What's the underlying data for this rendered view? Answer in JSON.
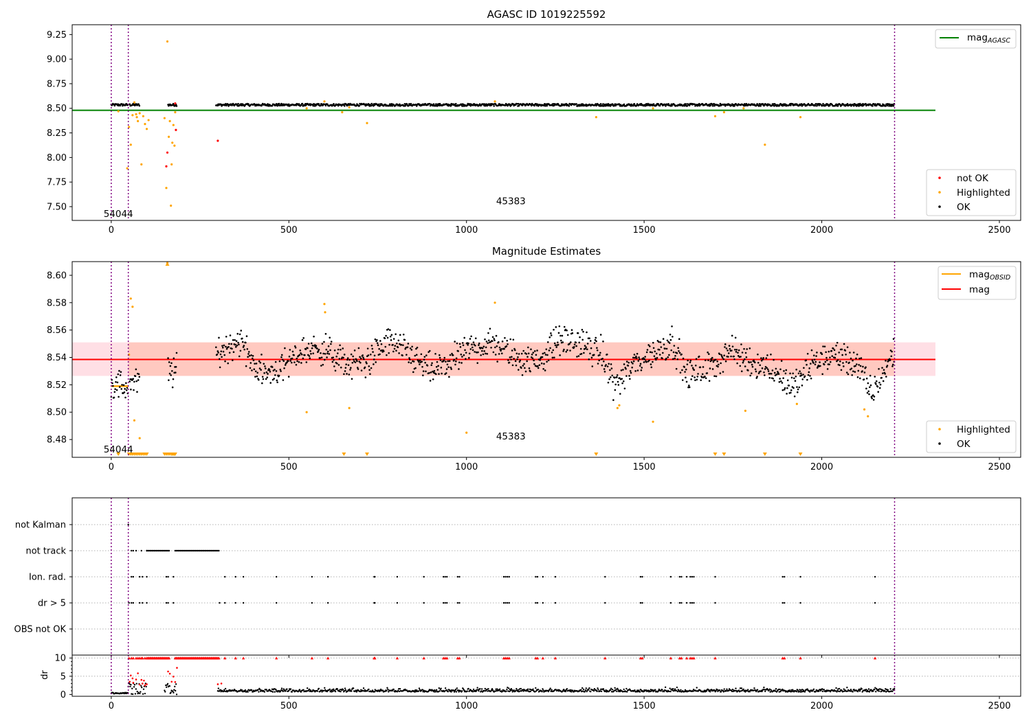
{
  "chart_data": [
    {
      "type": "scatter",
      "title": "AGASC ID 1019225592",
      "xlim": [
        -110,
        2560
      ],
      "ylim": [
        7.36,
        9.35
      ],
      "xticks": [
        0,
        500,
        1000,
        1500,
        2000,
        2500
      ],
      "yticks": [
        7.5,
        7.75,
        8.0,
        8.25,
        8.5,
        8.75,
        9.0,
        9.25
      ],
      "ytick_labels": [
        "7.50",
        "7.75",
        "8.00",
        "8.25",
        "8.50",
        "8.75",
        "9.00",
        "9.25"
      ],
      "vlines": [
        0,
        48,
        2205
      ],
      "hline": {
        "y": 8.48,
        "x0": -110,
        "x1": 2320,
        "color": "#008000"
      },
      "annotations": [
        {
          "text": "54044",
          "x": 20,
          "y": 7.43
        },
        {
          "text": "45383",
          "x": 1125,
          "y": 7.56
        }
      ],
      "legend_top": [
        {
          "label": "mag",
          "sub": "AGASC",
          "color": "#008000"
        }
      ],
      "legend_bottom": [
        {
          "label": "not OK",
          "color": "#ff0000"
        },
        {
          "label": "Highlighted",
          "color": "#ffa500"
        },
        {
          "label": "OK",
          "color": "#000000"
        }
      ],
      "ok_band": {
        "level": 8.535,
        "spread": 0.012
      },
      "ok_segments": [
        [
          0,
          48
        ],
        [
          52,
          80
        ],
        [
          160,
          185
        ],
        [
          295,
          2205
        ]
      ],
      "highlighted": [
        [
          20,
          8.47
        ],
        [
          45,
          7.89
        ],
        [
          50,
          8.31
        ],
        [
          55,
          8.13
        ],
        [
          60,
          8.43
        ],
        [
          65,
          8.56
        ],
        [
          70,
          8.44
        ],
        [
          72,
          8.41
        ],
        [
          75,
          8.37
        ],
        [
          80,
          8.45
        ],
        [
          85,
          7.93
        ],
        [
          90,
          8.42
        ],
        [
          95,
          8.34
        ],
        [
          100,
          8.29
        ],
        [
          105,
          8.38
        ],
        [
          150,
          8.4
        ],
        [
          155,
          7.69
        ],
        [
          158,
          9.18
        ],
        [
          162,
          8.21
        ],
        [
          165,
          8.37
        ],
        [
          168,
          7.51
        ],
        [
          170,
          7.93
        ],
        [
          172,
          8.15
        ],
        [
          175,
          8.33
        ],
        [
          178,
          8.12
        ],
        [
          180,
          8.46
        ],
        [
          550,
          8.5
        ],
        [
          600,
          8.57
        ],
        [
          650,
          8.46
        ],
        [
          670,
          8.51
        ],
        [
          720,
          8.35
        ],
        [
          1080,
          8.57
        ],
        [
          1365,
          8.41
        ],
        [
          1525,
          8.5
        ],
        [
          1700,
          8.42
        ],
        [
          1725,
          8.46
        ],
        [
          1780,
          8.5
        ],
        [
          1840,
          8.13
        ],
        [
          1940,
          8.41
        ]
      ],
      "not_ok": [
        [
          155,
          7.91
        ],
        [
          158,
          8.05
        ],
        [
          180,
          8.55
        ],
        [
          182,
          8.28
        ],
        [
          300,
          8.17
        ]
      ]
    },
    {
      "type": "scatter",
      "title": "Magnitude Estimates",
      "xlim": [
        -110,
        2560
      ],
      "ylim": [
        8.467,
        8.61
      ],
      "xticks": [
        0,
        500,
        1000,
        1500,
        2000,
        2500
      ],
      "yticks": [
        8.48,
        8.5,
        8.52,
        8.54,
        8.56,
        8.58,
        8.6
      ],
      "ytick_labels": [
        "8.48",
        "8.50",
        "8.52",
        "8.54",
        "8.56",
        "8.58",
        "8.60"
      ],
      "vlines": [
        0,
        48,
        2205
      ],
      "mag_line": {
        "y": 8.5385,
        "x0": -110,
        "x1": 2320,
        "color": "#ff0000"
      },
      "mag_band": {
        "y0": 8.5265,
        "y1": 8.551
      },
      "obsid_segments": [
        [
          0,
          48,
          8.519
        ]
      ],
      "annotations": [
        {
          "text": "54044",
          "x": 20,
          "y": 8.473
        },
        {
          "text": "45383",
          "x": 1125,
          "y": 8.4825
        }
      ],
      "legend_top": [
        {
          "label": "mag",
          "sub": "OBSID",
          "color": "#ffa500"
        },
        {
          "label": "mag",
          "sub": "",
          "color": "#ff0000"
        }
      ],
      "legend_bottom": [
        {
          "label": "Highlighted",
          "color": "#ffa500"
        },
        {
          "label": "OK",
          "color": "#000000"
        }
      ],
      "wave": [
        [
          0,
          8.52
        ],
        [
          48,
          8.518
        ],
        [
          300,
          8.543
        ],
        [
          360,
          8.553
        ],
        [
          420,
          8.528
        ],
        [
          480,
          8.532
        ],
        [
          540,
          8.545
        ],
        [
          600,
          8.546
        ],
        [
          660,
          8.535
        ],
        [
          720,
          8.537
        ],
        [
          780,
          8.552
        ],
        [
          840,
          8.542
        ],
        [
          900,
          8.53
        ],
        [
          960,
          8.537
        ],
        [
          1020,
          8.548
        ],
        [
          1080,
          8.55
        ],
        [
          1140,
          8.54
        ],
        [
          1200,
          8.537
        ],
        [
          1260,
          8.553
        ],
        [
          1320,
          8.55
        ],
        [
          1380,
          8.542
        ],
        [
          1420,
          8.52
        ],
        [
          1480,
          8.537
        ],
        [
          1540,
          8.545
        ],
        [
          1580,
          8.552
        ],
        [
          1620,
          8.527
        ],
        [
          1680,
          8.532
        ],
        [
          1740,
          8.545
        ],
        [
          1800,
          8.537
        ],
        [
          1860,
          8.532
        ],
        [
          1920,
          8.518
        ],
        [
          1980,
          8.537
        ],
        [
          2040,
          8.542
        ],
        [
          2100,
          8.535
        ],
        [
          2140,
          8.513
        ],
        [
          2180,
          8.532
        ],
        [
          2205,
          8.545
        ]
      ],
      "highlighted": [
        [
          50,
          8.542
        ],
        [
          55,
          8.583
        ],
        [
          60,
          8.577
        ],
        [
          65,
          8.494
        ],
        [
          80,
          8.481
        ],
        [
          158,
          8.609
        ],
        [
          550,
          8.5
        ],
        [
          600,
          8.579
        ],
        [
          602,
          8.573
        ],
        [
          670,
          8.503
        ],
        [
          1000,
          8.485
        ],
        [
          1080,
          8.58
        ],
        [
          1425,
          8.503
        ],
        [
          1430,
          8.505
        ],
        [
          1525,
          8.493
        ],
        [
          1785,
          8.501
        ],
        [
          1930,
          8.506
        ],
        [
          2120,
          8.502
        ],
        [
          2130,
          8.497
        ]
      ],
      "down_markers": [
        20,
        50,
        55,
        60,
        65,
        70,
        75,
        80,
        85,
        90,
        95,
        100,
        150,
        155,
        160,
        165,
        170,
        172,
        175,
        178,
        180,
        655,
        720,
        1365,
        1700,
        1725,
        1840,
        1940
      ]
    },
    {
      "type": "scatter",
      "title": "",
      "xlim": [
        -110,
        2560
      ],
      "xticks": [
        0,
        500,
        1000,
        1500,
        2000,
        2500
      ],
      "vlines": [
        0,
        48,
        2205
      ],
      "categories": [
        "not Kalman",
        "not track",
        "Ion. rad.",
        "dr > 5",
        "OBS not OK"
      ],
      "flags": {
        "not Kalman": [
          48
        ],
        "not track": [
          [
            57,
            62,
            70,
            85,
            100
          ],
          [
            [
              100,
              165
            ]
          ],
          [
            [
              180,
              305
            ]
          ]
        ],
        "Ion. rad.": [
          57,
          62,
          80,
          88,
          100,
          155,
          160,
          175,
          320,
          350,
          372,
          465,
          565,
          610,
          740,
          742,
          805,
          880,
          935,
          940,
          945,
          975,
          980,
          1105,
          1110,
          1115,
          1120,
          1195,
          1200,
          1215,
          1250,
          1390,
          1490,
          1495,
          1575,
          1600,
          1605,
          1620,
          1630,
          1635,
          1640,
          1700,
          1890,
          1895,
          1940,
          2150
        ],
        "dr > 5": [
          50,
          57,
          62,
          80,
          88,
          100,
          155,
          160,
          175,
          305,
          320,
          350,
          372,
          465,
          565,
          610,
          740,
          742,
          805,
          880,
          935,
          940,
          945,
          975,
          980,
          1105,
          1110,
          1115,
          1120,
          1195,
          1200,
          1215,
          1250,
          1390,
          1490,
          1495,
          1575,
          1600,
          1605,
          1620,
          1630,
          1635,
          1640,
          1700,
          1890,
          1895,
          1940,
          2150
        ]
      }
    },
    {
      "type": "scatter",
      "title": "",
      "ylabel": "dr",
      "xlim": [
        -110,
        2560
      ],
      "ylim": [
        -0.5,
        10.8
      ],
      "xticks": [
        0,
        500,
        1000,
        1500,
        2000,
        2500
      ],
      "xtick_labels": [
        "0",
        "500",
        "1000",
        "1500",
        "2000",
        "2500"
      ],
      "yticks": [
        0,
        5,
        10
      ],
      "ytick_labels": [
        "0",
        "5",
        "10"
      ],
      "vlines": [
        0,
        48,
        2205
      ],
      "clip_markers": [
        50,
        57,
        62,
        70,
        75,
        80,
        85,
        88,
        95,
        [
          100,
          165
        ],
        [
          180,
          305
        ],
        320,
        350,
        372,
        465,
        565,
        610,
        740,
        742,
        805,
        880,
        935,
        940,
        945,
        975,
        980,
        1105,
        1110,
        1115,
        1120,
        1195,
        1200,
        1215,
        1250,
        1390,
        1490,
        1495,
        1575,
        1600,
        1605,
        1620,
        1630,
        1635,
        1640,
        1700,
        1890,
        1895,
        1940,
        2150
      ],
      "dr_red": [
        [
          52,
          3.5
        ],
        [
          55,
          5.2
        ],
        [
          60,
          4.4
        ],
        [
          62,
          3.2
        ],
        [
          70,
          4.1
        ],
        [
          75,
          5.8
        ],
        [
          80,
          2.7
        ],
        [
          85,
          4.0
        ],
        [
          88,
          3.0
        ],
        [
          92,
          3.8
        ],
        [
          95,
          2.5
        ],
        [
          100,
          2.8
        ],
        [
          160,
          6.3
        ],
        [
          165,
          5.7
        ],
        [
          170,
          3.5
        ],
        [
          175,
          4.9
        ],
        [
          180,
          3.4
        ],
        [
          185,
          7.3
        ],
        [
          300,
          2.8
        ],
        [
          310,
          3.0
        ]
      ]
    }
  ]
}
